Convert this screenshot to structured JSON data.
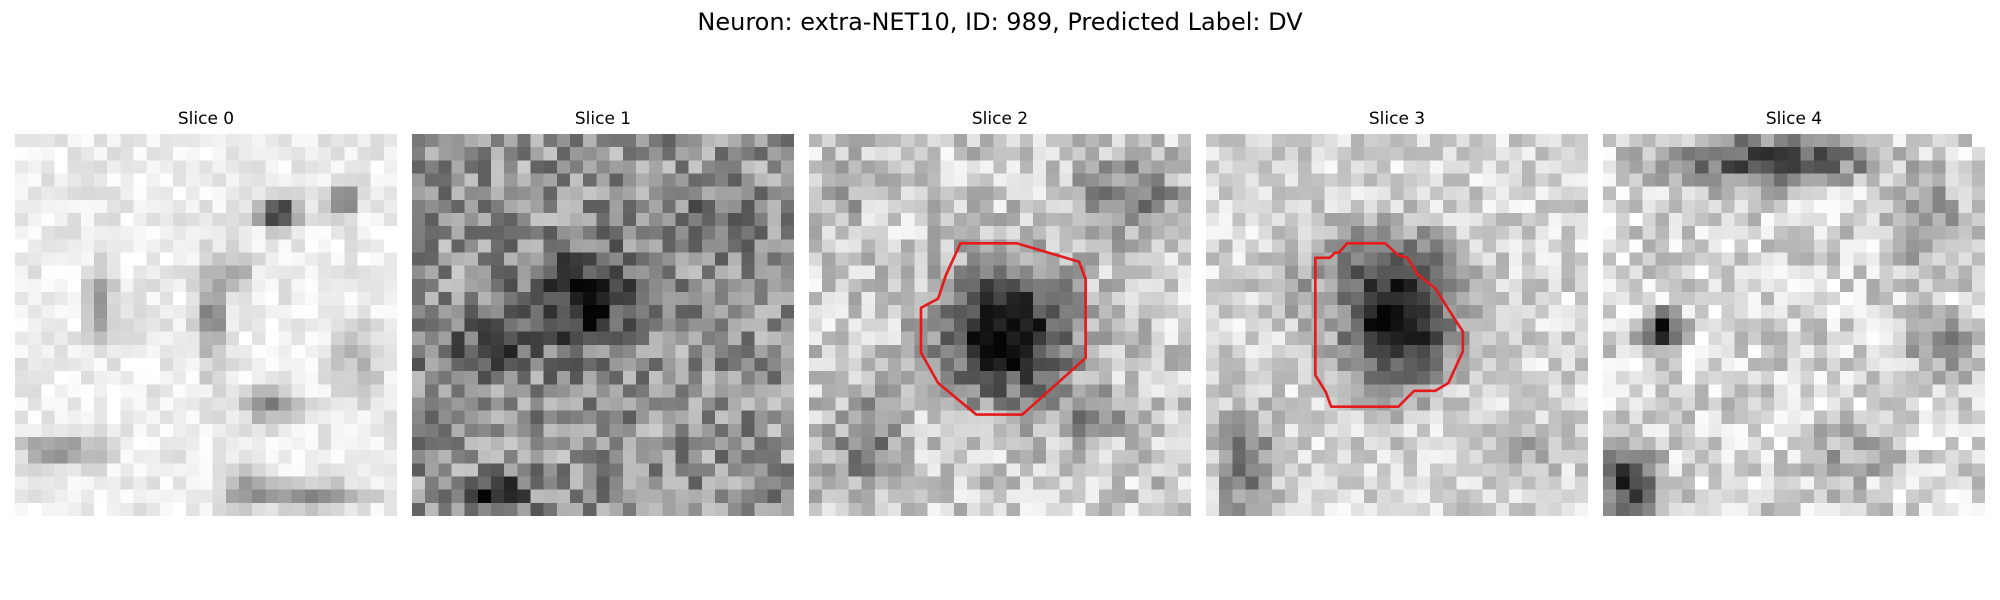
{
  "figure": {
    "title": "Neuron: extra-NET10, ID: 989, Predicted Label: DV"
  },
  "slices": [
    {
      "label": "Slice 0",
      "has_contour": false
    },
    {
      "label": "Slice 1",
      "has_contour": false
    },
    {
      "label": "Slice 2",
      "has_contour": true
    },
    {
      "label": "Slice 3",
      "has_contour": true
    },
    {
      "label": "Slice 4",
      "has_contour": false
    }
  ],
  "colors": {
    "contour": "#e41a1c",
    "background": "#ffffff"
  }
}
